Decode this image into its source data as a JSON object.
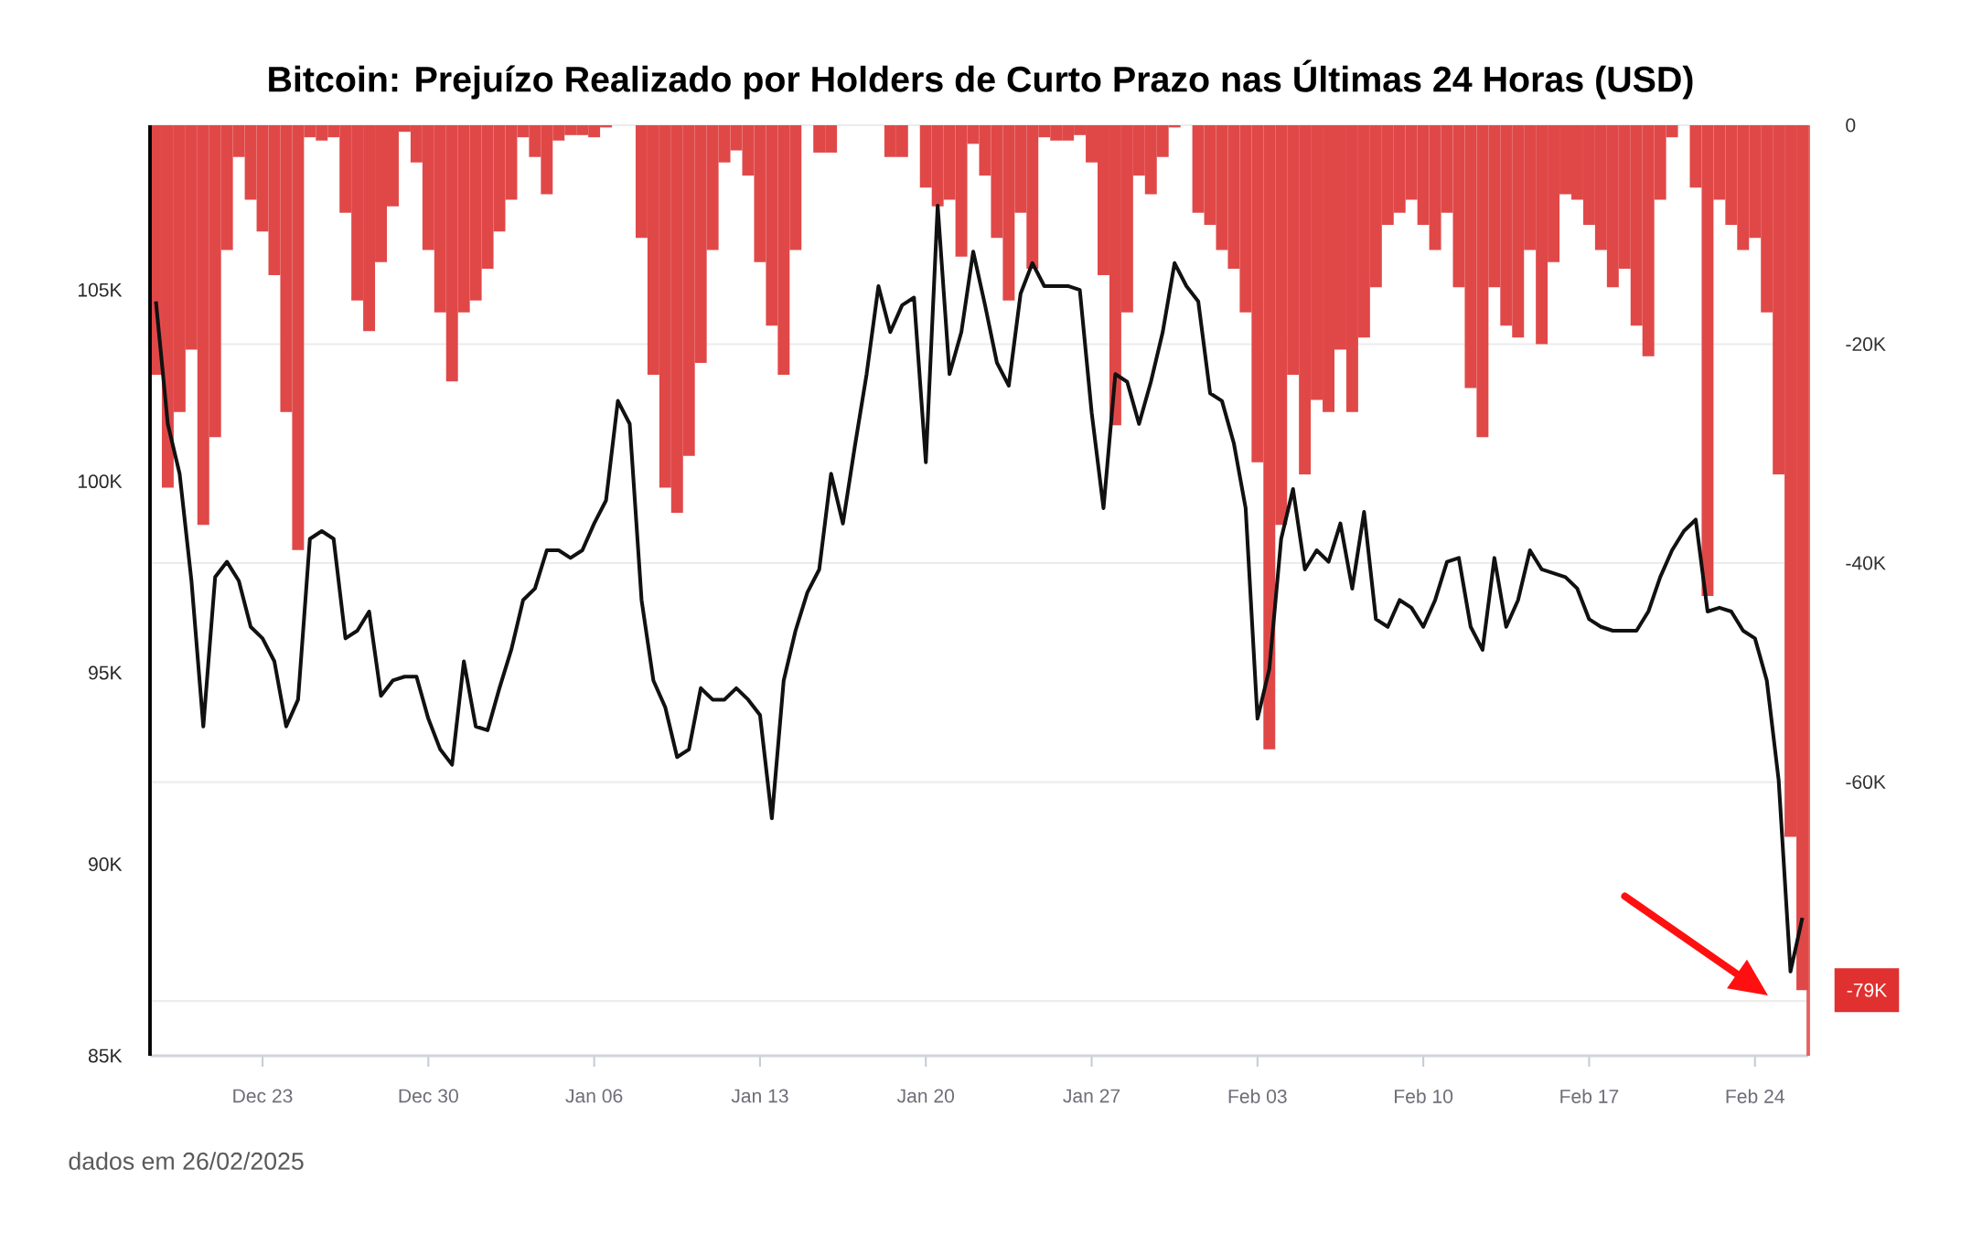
{
  "chart_data": {
    "type": "line",
    "title": "Bitcoin: Prejuízo Realizado por Holders de Curto Prazo nas Últimas 24 Horas (USD)",
    "annotations": [
      "dados em 26/02/2025"
    ],
    "xlim": [
      "2024-12-18T06:00",
      "2025-02-26T06:00"
    ],
    "xticks": [
      {
        "value": "2024-12-23",
        "label": "Dec 23"
      },
      {
        "value": "2024-12-30",
        "label": "Dec 30"
      },
      {
        "value": "2025-01-06",
        "label": "Jan 06"
      },
      {
        "value": "2025-01-13",
        "label": "Jan 13"
      },
      {
        "value": "2025-01-20",
        "label": "Jan 20"
      },
      {
        "value": "2025-01-27",
        "label": "Jan 27"
      },
      {
        "value": "2025-02-03",
        "label": "Feb 03"
      },
      {
        "value": "2025-02-10",
        "label": "Feb 10"
      },
      {
        "value": "2025-02-17",
        "label": "Feb 17"
      },
      {
        "value": "2025-02-24",
        "label": "Feb 24"
      }
    ],
    "ylim": [
      85000,
      109300
    ],
    "yticks": [
      {
        "value": 85000,
        "label": "85K"
      },
      {
        "value": 90000,
        "label": "90K"
      },
      {
        "value": 95000,
        "label": "95K"
      },
      {
        "value": 100000,
        "label": "100K"
      },
      {
        "value": 105000,
        "label": "105K"
      }
    ],
    "y2lim": [
      -85000,
      0
    ],
    "y2ticks": [
      {
        "value": 0,
        "label": "0"
      },
      {
        "value": -20000,
        "label": "-20K"
      },
      {
        "value": -40000,
        "label": "-40K"
      },
      {
        "value": -60000,
        "label": "-60K"
      },
      {
        "value": -79000,
        "label": "-79K"
      },
      {
        "value": -80000,
        "label": null
      }
    ],
    "grid": true,
    "x": [
      "2024-12-18T12:00",
      "2024-12-19T00:00",
      "2024-12-19T12:00",
      "2024-12-20T00:00",
      "2024-12-20T12:00",
      "2024-12-21T00:00",
      "2024-12-21T12:00",
      "2024-12-22T00:00",
      "2024-12-22T12:00",
      "2024-12-23T00:00",
      "2024-12-23T12:00",
      "2024-12-24T00:00",
      "2024-12-24T12:00",
      "2024-12-25T00:00",
      "2024-12-25T12:00",
      "2024-12-26T00:00",
      "2024-12-26T12:00",
      "2024-12-27T00:00",
      "2024-12-27T12:00",
      "2024-12-28T00:00",
      "2024-12-28T12:00",
      "2024-12-29T00:00",
      "2024-12-29T12:00",
      "2024-12-30T00:00",
      "2024-12-30T12:00",
      "2024-12-31T00:00",
      "2024-12-31T12:00",
      "2025-01-01T00:00",
      "2025-01-01T12:00",
      "2025-01-02T00:00",
      "2025-01-02T12:00",
      "2025-01-03T00:00",
      "2025-01-03T12:00",
      "2025-01-04T00:00",
      "2025-01-04T12:00",
      "2025-01-05T00:00",
      "2025-01-05T12:00",
      "2025-01-06T00:00",
      "2025-01-06T12:00",
      "2025-01-07T00:00",
      "2025-01-07T12:00",
      "2025-01-08T00:00",
      "2025-01-08T12:00",
      "2025-01-09T00:00",
      "2025-01-09T12:00",
      "2025-01-10T00:00",
      "2025-01-10T12:00",
      "2025-01-11T00:00",
      "2025-01-11T12:00",
      "2025-01-12T00:00",
      "2025-01-12T12:00",
      "2025-01-13T00:00",
      "2025-01-13T12:00",
      "2025-01-14T00:00",
      "2025-01-14T12:00",
      "2025-01-15T00:00",
      "2025-01-15T12:00",
      "2025-01-16T00:00",
      "2025-01-16T12:00",
      "2025-01-17T00:00",
      "2025-01-17T12:00",
      "2025-01-18T00:00",
      "2025-01-18T12:00",
      "2025-01-19T00:00",
      "2025-01-19T12:00",
      "2025-01-20T00:00",
      "2025-01-20T12:00",
      "2025-01-21T00:00",
      "2025-01-21T12:00",
      "2025-01-22T00:00",
      "2025-01-22T12:00",
      "2025-01-23T00:00",
      "2025-01-23T12:00",
      "2025-01-24T00:00",
      "2025-01-24T12:00",
      "2025-01-25T00:00",
      "2025-01-25T12:00",
      "2025-01-26T00:00",
      "2025-01-26T12:00",
      "2025-01-27T00:00",
      "2025-01-27T12:00",
      "2025-01-28T00:00",
      "2025-01-28T12:00",
      "2025-01-29T00:00",
      "2025-01-29T12:00",
      "2025-01-30T00:00",
      "2025-01-30T12:00",
      "2025-01-31T00:00",
      "2025-01-31T12:00",
      "2025-02-01T00:00",
      "2025-02-01T12:00",
      "2025-02-02T00:00",
      "2025-02-02T12:00",
      "2025-02-03T00:00",
      "2025-02-03T12:00",
      "2025-02-04T00:00",
      "2025-02-04T12:00",
      "2025-02-05T00:00",
      "2025-02-05T12:00",
      "2025-02-06T00:00",
      "2025-02-06T12:00",
      "2025-02-07T00:00",
      "2025-02-07T12:00",
      "2025-02-08T00:00",
      "2025-02-08T12:00",
      "2025-02-09T00:00",
      "2025-02-09T12:00",
      "2025-02-10T00:00",
      "2025-02-10T12:00",
      "2025-02-11T00:00",
      "2025-02-11T12:00",
      "2025-02-12T00:00",
      "2025-02-12T12:00",
      "2025-02-13T00:00",
      "2025-02-13T12:00",
      "2025-02-14T00:00",
      "2025-02-14T12:00",
      "2025-02-15T00:00",
      "2025-02-15T12:00",
      "2025-02-16T00:00",
      "2025-02-16T12:00",
      "2025-02-17T00:00",
      "2025-02-17T12:00",
      "2025-02-18T00:00",
      "2025-02-18T12:00",
      "2025-02-19T00:00",
      "2025-02-19T12:00",
      "2025-02-20T00:00",
      "2025-02-20T12:00",
      "2025-02-21T00:00",
      "2025-02-21T12:00",
      "2025-02-22T00:00",
      "2025-02-22T12:00",
      "2025-02-23T00:00",
      "2025-02-23T12:00",
      "2025-02-24T00:00",
      "2025-02-24T12:00",
      "2025-02-25T00:00",
      "2025-02-25T12:00",
      "2025-02-26T00:00"
    ],
    "series": [
      {
        "type": "bar",
        "axis": "y2",
        "color": "#e04848",
        "values": [
          -22800,
          -33100,
          -26200,
          -20500,
          -36500,
          -28500,
          -11400,
          -2900,
          -6800,
          -9700,
          -13700,
          -26200,
          -38800,
          -1100,
          -1400,
          -1100,
          -8000,
          -16000,
          -18800,
          -12500,
          -7400,
          -600,
          -3400,
          -11400,
          -17100,
          -23400,
          -17100,
          -16000,
          -13100,
          -9700,
          -6800,
          -1100,
          -2900,
          -6300,
          -1400,
          -900,
          -900,
          -1100,
          -200,
          null,
          null,
          -10300,
          -22800,
          -33100,
          -35400,
          -30200,
          -21700,
          -11400,
          -3400,
          -2300,
          -4600,
          -12500,
          -18300,
          -22800,
          -11400,
          null,
          -2500,
          -2500,
          null,
          null,
          null,
          null,
          -2900,
          -2900,
          null,
          -5700,
          -7400,
          -6800,
          -12000,
          -1700,
          -4600,
          -10300,
          -16000,
          -8000,
          -13100,
          -1100,
          -1400,
          -1400,
          -900,
          -3400,
          -13700,
          -27400,
          -17100,
          -4600,
          -6300,
          -2900,
          -200,
          null,
          -8000,
          -9100,
          -11400,
          -13100,
          -17100,
          -30800,
          -57000,
          -36500,
          -22800,
          -31900,
          -25100,
          -26200,
          -20500,
          -26200,
          -19400,
          -14800,
          -9100,
          -8000,
          -6800,
          -9100,
          -11400,
          -8000,
          -14800,
          -24000,
          -28500,
          -14800,
          -18300,
          -19400,
          -11400,
          -20000,
          -12500,
          -6300,
          -6800,
          -9100,
          -11400,
          -14800,
          -13100,
          -18300,
          -21100,
          -6800,
          -1100,
          null,
          -5700,
          -43000,
          -6800,
          -9100,
          -11400,
          -10300,
          -17100,
          -31900,
          -65000,
          -79000
        ]
      },
      {
        "color": "#111111",
        "values": [
          104700,
          101500,
          100200,
          97400,
          93600,
          97500,
          97900,
          97400,
          96200,
          95900,
          95300,
          93600,
          94300,
          98500,
          98700,
          98500,
          95900,
          96100,
          96600,
          94400,
          94800,
          94900,
          94900,
          93800,
          93000,
          92600,
          95300,
          93600,
          93500,
          94600,
          95600,
          96900,
          97200,
          98200,
          98200,
          98000,
          98200,
          98900,
          99500,
          102100,
          101500,
          96900,
          94800,
          94100,
          92800,
          93000,
          94600,
          94300,
          94300,
          94600,
          94300,
          93900,
          91200,
          94800,
          96100,
          97100,
          97700,
          100200,
          98900,
          100900,
          102800,
          105100,
          103900,
          104600,
          104800,
          100500,
          107200,
          102800,
          103900,
          106000,
          104600,
          103100,
          102500,
          104900,
          105700,
          105100,
          105100,
          105100,
          105000,
          101800,
          99300,
          102800,
          102600,
          101500,
          102600,
          103900,
          105700,
          105100,
          104700,
          102300,
          102100,
          101000,
          99300,
          93800,
          95100,
          98500,
          99800,
          97700,
          98200,
          97900,
          98900,
          97200,
          99200,
          96400,
          96200,
          96900,
          96700,
          96200,
          96900,
          97900,
          98000,
          96200,
          95600,
          98000,
          96200,
          96900,
          98200,
          97700,
          97600,
          97500,
          97200,
          96400,
          96200,
          96100,
          96100,
          96100,
          96600,
          97500,
          98200,
          98700,
          99000,
          96600,
          96700,
          96600,
          96100,
          95900,
          94800,
          92200,
          87200,
          88600
        ]
      }
    ]
  }
}
